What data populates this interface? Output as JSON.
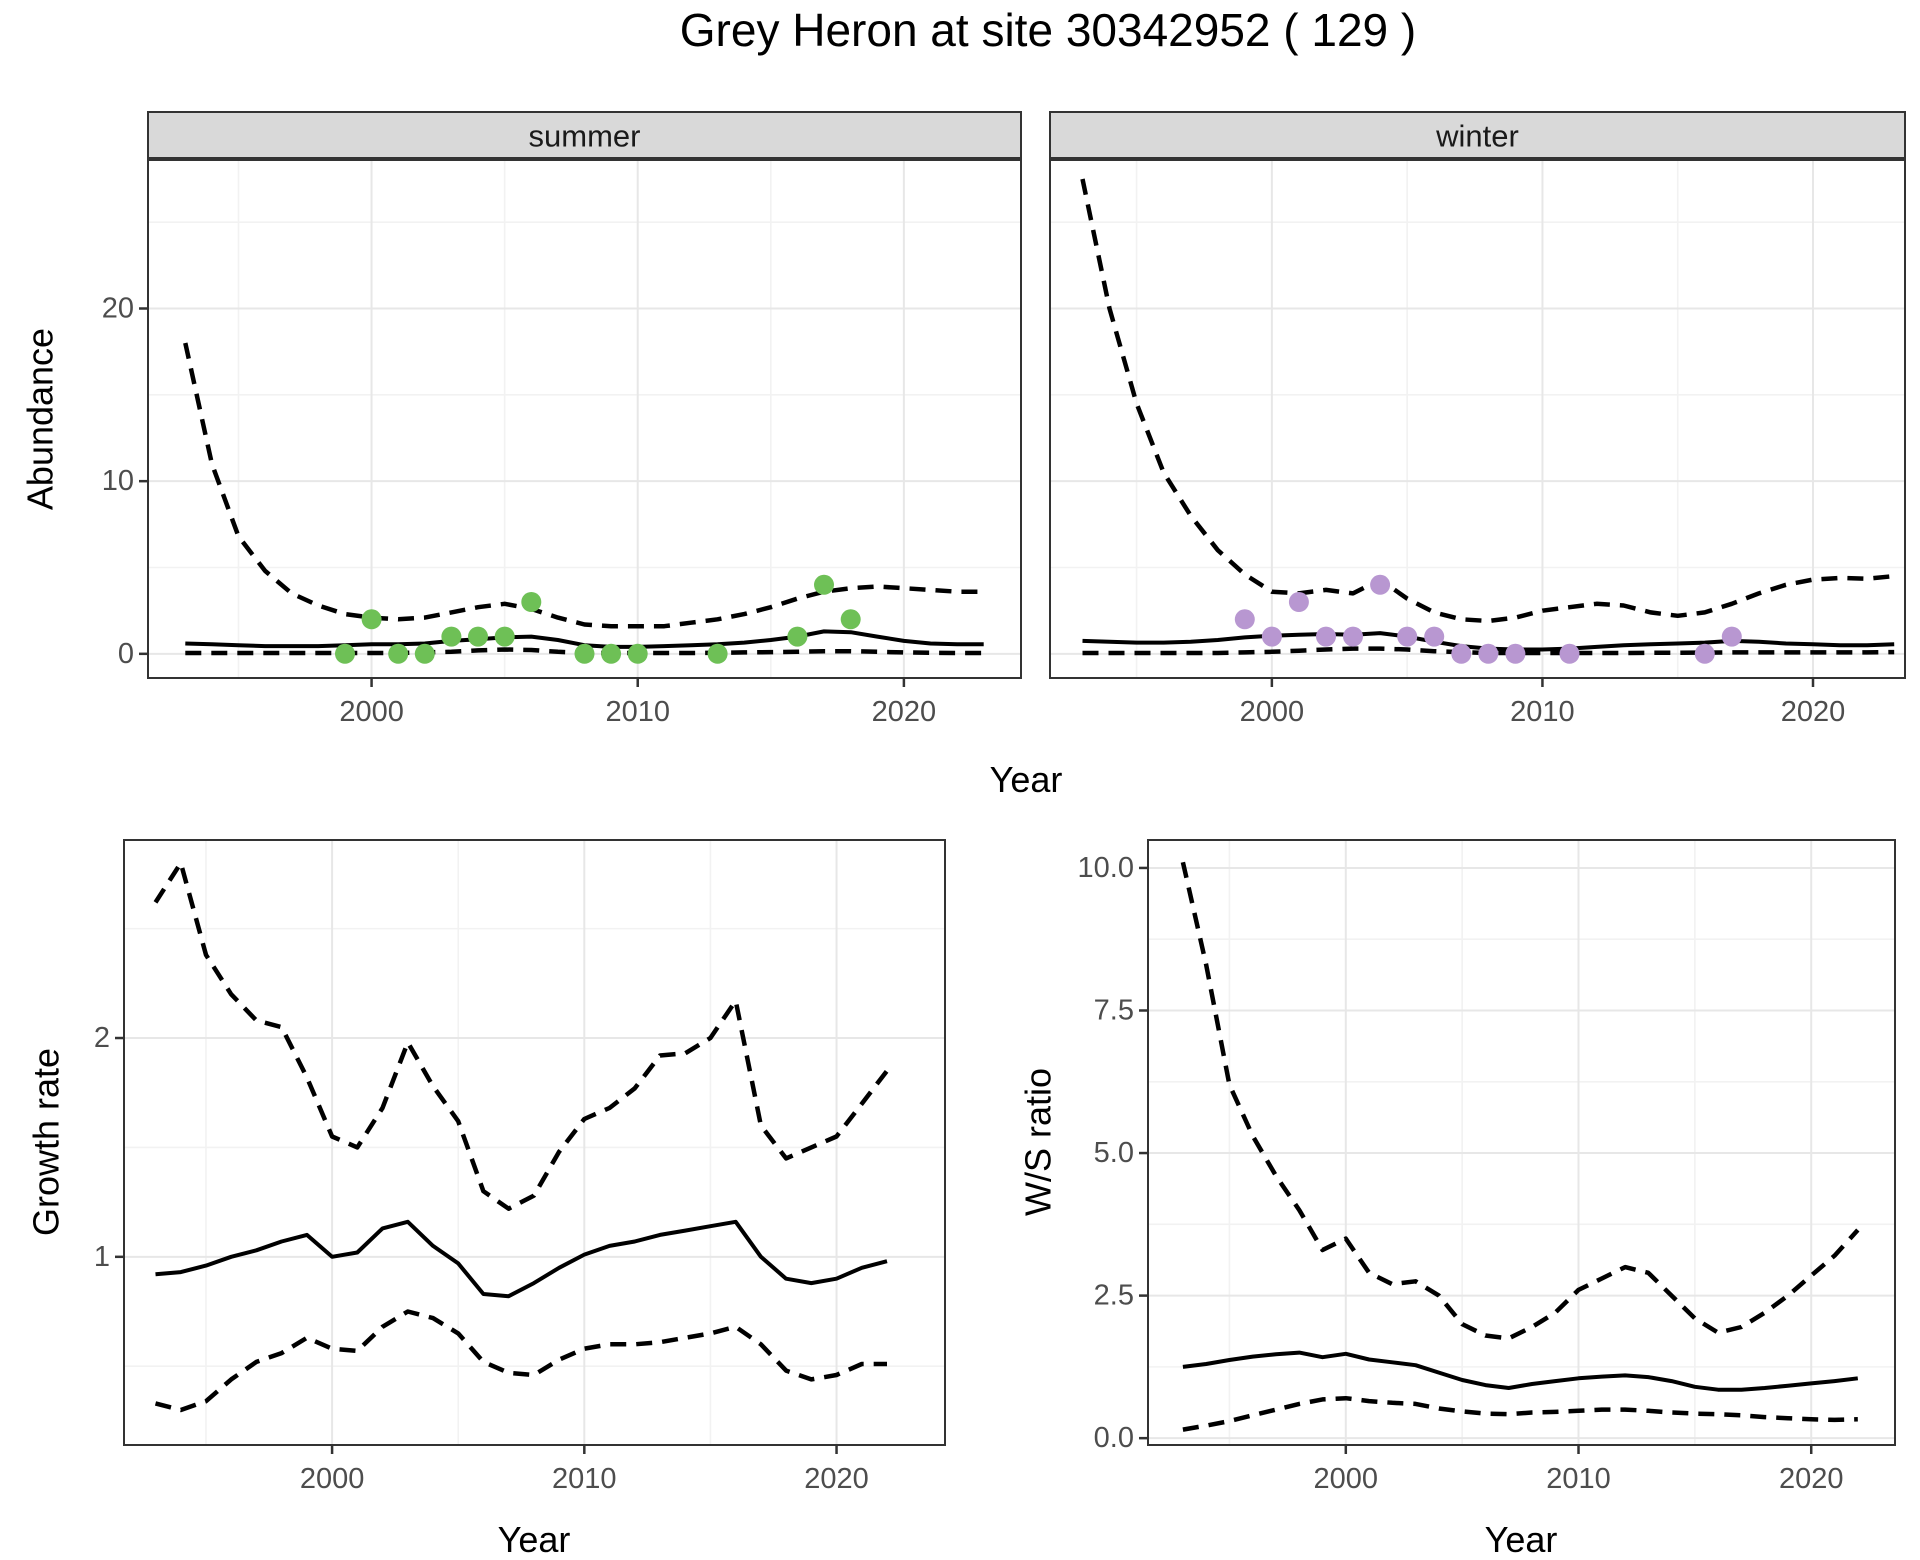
{
  "title": "Grey Heron at site 30342952 ( 129 )",
  "labels": {
    "abundance": "Abundance",
    "year_top": "Year",
    "growth_rate": "Growth rate",
    "year_bottom_left": "Year",
    "ws_ratio": "W/S ratio",
    "year_bottom_right": "Year"
  },
  "colors": {
    "summer_point": "#6ec056",
    "winter_point": "#b897d1",
    "line": "#000000",
    "grid_major": "#e7e7e7",
    "grid_minor": "#f2f2f2",
    "strip_bg": "#d9d9d9",
    "panel_border": "#333333",
    "tick_label": "#4d4d4d",
    "axis_title": "#000000",
    "strip_text": "#1a1a1a",
    "background": "#ffffff"
  },
  "chart_data": [
    {
      "id": "abundance-summer",
      "type": "line",
      "facet_label": "summer",
      "x_label": "Year",
      "y_label": "Abundance",
      "x": [
        1993,
        1994,
        1995,
        1996,
        1997,
        1998,
        1999,
        2000,
        2001,
        2002,
        2003,
        2004,
        2005,
        2006,
        2007,
        2008,
        2009,
        2010,
        2011,
        2012,
        2013,
        2014,
        2015,
        2016,
        2017,
        2018,
        2019,
        2020,
        2021,
        2022,
        2023
      ],
      "xlim": [
        1991.6,
        2024.4
      ],
      "ylim": [
        -1.4,
        28.6
      ],
      "x_ticks": [
        {
          "v": 2000,
          "label": "2000"
        },
        {
          "v": 2010,
          "label": "2010"
        },
        {
          "v": 2020,
          "label": "2020"
        }
      ],
      "x_minor": [
        1995,
        2005,
        2015
      ],
      "y_ticks": [
        {
          "v": 0,
          "label": "0"
        },
        {
          "v": 10,
          "label": "10"
        },
        {
          "v": 20,
          "label": "20"
        }
      ],
      "y_minor": [
        5,
        15,
        25
      ],
      "show_y_tick_labels": true,
      "series": [
        {
          "name": "upper-ci",
          "style": "dashed",
          "values": [
            18,
            11,
            6.8,
            4.8,
            3.5,
            2.8,
            2.3,
            2.1,
            2.0,
            2.1,
            2.4,
            2.7,
            2.9,
            2.6,
            2.1,
            1.7,
            1.6,
            1.6,
            1.6,
            1.8,
            2.0,
            2.3,
            2.7,
            3.2,
            3.6,
            3.8,
            3.9,
            3.8,
            3.7,
            3.6,
            3.6
          ]
        },
        {
          "name": "median",
          "style": "solid",
          "values": [
            0.6,
            0.55,
            0.5,
            0.45,
            0.45,
            0.45,
            0.5,
            0.55,
            0.55,
            0.6,
            0.75,
            0.85,
            0.95,
            1.0,
            0.8,
            0.5,
            0.4,
            0.4,
            0.45,
            0.5,
            0.55,
            0.65,
            0.8,
            1.0,
            1.3,
            1.25,
            1.0,
            0.75,
            0.6,
            0.55,
            0.55
          ]
        },
        {
          "name": "lower-ci",
          "style": "dashed",
          "values": [
            0.05,
            0.05,
            0.05,
            0.05,
            0.05,
            0.05,
            0.05,
            0.05,
            0.05,
            0.08,
            0.12,
            0.2,
            0.25,
            0.22,
            0.12,
            0.05,
            0.05,
            0.05,
            0.05,
            0.05,
            0.06,
            0.08,
            0.1,
            0.12,
            0.15,
            0.15,
            0.12,
            0.08,
            0.06,
            0.05,
            0.05
          ]
        }
      ],
      "points": {
        "color_key": "summer_point",
        "data": [
          [
            1999,
            0
          ],
          [
            2000,
            2
          ],
          [
            2001,
            0
          ],
          [
            2002,
            0
          ],
          [
            2003,
            1
          ],
          [
            2004,
            1
          ],
          [
            2005,
            1
          ],
          [
            2006,
            3
          ],
          [
            2008,
            0
          ],
          [
            2009,
            0
          ],
          [
            2010,
            0
          ],
          [
            2013,
            0
          ],
          [
            2016,
            1
          ],
          [
            2017,
            4
          ],
          [
            2018,
            2
          ]
        ]
      }
    },
    {
      "id": "abundance-winter",
      "type": "line",
      "facet_label": "winter",
      "x_label": "Year",
      "y_label": "Abundance",
      "x": [
        1993,
        1994,
        1995,
        1996,
        1997,
        1998,
        1999,
        2000,
        2001,
        2002,
        2003,
        2004,
        2005,
        2006,
        2007,
        2008,
        2009,
        2010,
        2011,
        2012,
        2013,
        2014,
        2015,
        2016,
        2017,
        2018,
        2019,
        2020,
        2021,
        2022,
        2023
      ],
      "xlim": [
        1991.8,
        2023.4
      ],
      "ylim": [
        -1.4,
        28.6
      ],
      "x_ticks": [
        {
          "v": 2000,
          "label": "2000"
        },
        {
          "v": 2010,
          "label": "2010"
        },
        {
          "v": 2020,
          "label": "2020"
        }
      ],
      "x_minor": [
        1995,
        2005,
        2015
      ],
      "y_ticks": [
        {
          "v": 0,
          "label": "0"
        },
        {
          "v": 10,
          "label": "10"
        },
        {
          "v": 20,
          "label": "20"
        }
      ],
      "y_minor": [
        5,
        15,
        25
      ],
      "show_y_tick_labels": false,
      "series": [
        {
          "name": "upper-ci",
          "style": "dashed",
          "values": [
            27.5,
            20,
            14.5,
            10.5,
            8,
            6,
            4.6,
            3.6,
            3.5,
            3.7,
            3.5,
            4.3,
            3.2,
            2.4,
            2.0,
            1.9,
            2.1,
            2.5,
            2.7,
            2.9,
            2.8,
            2.4,
            2.2,
            2.4,
            2.9,
            3.5,
            4.0,
            4.3,
            4.4,
            4.35,
            4.5
          ]
        },
        {
          "name": "median",
          "style": "solid",
          "values": [
            0.75,
            0.7,
            0.65,
            0.65,
            0.7,
            0.8,
            0.95,
            1.05,
            1.1,
            1.15,
            1.1,
            1.2,
            1.0,
            0.7,
            0.45,
            0.3,
            0.25,
            0.25,
            0.3,
            0.4,
            0.5,
            0.55,
            0.6,
            0.65,
            0.75,
            0.7,
            0.6,
            0.55,
            0.5,
            0.5,
            0.55
          ]
        },
        {
          "name": "lower-ci",
          "style": "dashed",
          "values": [
            0.05,
            0.05,
            0.05,
            0.05,
            0.05,
            0.05,
            0.08,
            0.12,
            0.18,
            0.25,
            0.3,
            0.3,
            0.25,
            0.15,
            0.1,
            0.05,
            0.05,
            0.05,
            0.05,
            0.05,
            0.05,
            0.06,
            0.06,
            0.07,
            0.08,
            0.08,
            0.08,
            0.08,
            0.08,
            0.08,
            0.1
          ]
        }
      ],
      "points": {
        "color_key": "winter_point",
        "data": [
          [
            1999,
            2
          ],
          [
            2000,
            1
          ],
          [
            2001,
            3
          ],
          [
            2002,
            1
          ],
          [
            2003,
            1
          ],
          [
            2004,
            4
          ],
          [
            2005,
            1
          ],
          [
            2006,
            1
          ],
          [
            2007,
            0
          ],
          [
            2008,
            0
          ],
          [
            2009,
            0
          ],
          [
            2011,
            0
          ],
          [
            2016,
            0
          ],
          [
            2017,
            1
          ]
        ]
      }
    },
    {
      "id": "growth-rate",
      "type": "line",
      "facet_label": null,
      "x_label": "Year",
      "y_label": "Growth rate",
      "x": [
        1993,
        1994,
        1995,
        1996,
        1997,
        1998,
        1999,
        2000,
        2001,
        2002,
        2003,
        2004,
        2005,
        2006,
        2007,
        2008,
        2009,
        2010,
        2011,
        2012,
        2013,
        2014,
        2015,
        2016,
        2017,
        2018,
        2019,
        2020,
        2021,
        2022
      ],
      "xlim": [
        1991.75,
        2024.3
      ],
      "ylim": [
        0.14,
        2.905
      ],
      "x_ticks": [
        {
          "v": 2000,
          "label": "2000"
        },
        {
          "v": 2010,
          "label": "2010"
        },
        {
          "v": 2020,
          "label": "2020"
        }
      ],
      "x_minor": [
        1995,
        2005,
        2015
      ],
      "y_ticks": [
        {
          "v": 1,
          "label": "1"
        },
        {
          "v": 2,
          "label": "2"
        }
      ],
      "y_minor": [
        0.5,
        1.5,
        2.5
      ],
      "show_y_tick_labels": true,
      "series": [
        {
          "name": "upper-ci",
          "style": "dashed",
          "values": [
            2.62,
            2.8,
            2.38,
            2.2,
            2.08,
            2.05,
            1.82,
            1.55,
            1.5,
            1.68,
            1.98,
            1.78,
            1.62,
            1.3,
            1.22,
            1.28,
            1.48,
            1.63,
            1.68,
            1.77,
            1.92,
            1.93,
            2.0,
            2.17,
            1.6,
            1.45,
            1.5,
            1.55,
            1.7,
            1.85
          ]
        },
        {
          "name": "median",
          "style": "solid",
          "values": [
            0.92,
            0.93,
            0.96,
            1.0,
            1.03,
            1.07,
            1.1,
            1.0,
            1.02,
            1.13,
            1.16,
            1.05,
            0.97,
            0.83,
            0.82,
            0.88,
            0.95,
            1.01,
            1.05,
            1.07,
            1.1,
            1.12,
            1.14,
            1.16,
            1.0,
            0.9,
            0.88,
            0.9,
            0.95,
            0.98
          ]
        },
        {
          "name": "lower-ci",
          "style": "dashed",
          "values": [
            0.33,
            0.3,
            0.34,
            0.44,
            0.52,
            0.56,
            0.63,
            0.58,
            0.57,
            0.68,
            0.75,
            0.72,
            0.65,
            0.52,
            0.47,
            0.46,
            0.53,
            0.58,
            0.6,
            0.6,
            0.61,
            0.63,
            0.65,
            0.68,
            0.6,
            0.48,
            0.44,
            0.46,
            0.51,
            0.51
          ]
        }
      ],
      "points": null
    },
    {
      "id": "ws-ratio",
      "type": "line",
      "facet_label": null,
      "x_label": "Year",
      "y_label": "W/S ratio",
      "x": [
        1993,
        1994,
        1995,
        1996,
        1997,
        1998,
        1999,
        2000,
        2001,
        2002,
        2003,
        2004,
        2005,
        2006,
        2007,
        2008,
        2009,
        2010,
        2011,
        2012,
        2013,
        2014,
        2015,
        2016,
        2017,
        2018,
        2019,
        2020,
        2021,
        2022
      ],
      "xlim": [
        1991.5,
        2023.6
      ],
      "ylim": [
        -0.12,
        10.49
      ],
      "x_ticks": [
        {
          "v": 2000,
          "label": "2000"
        },
        {
          "v": 2010,
          "label": "2010"
        },
        {
          "v": 2020,
          "label": "2020"
        }
      ],
      "x_minor": [
        1995,
        2005,
        2015
      ],
      "y_ticks": [
        {
          "v": 0,
          "label": "0.0"
        },
        {
          "v": 2.5,
          "label": "2.5"
        },
        {
          "v": 5,
          "label": "5.0"
        },
        {
          "v": 7.5,
          "label": "7.5"
        },
        {
          "v": 10,
          "label": "10.0"
        }
      ],
      "y_minor": [
        1.25,
        3.75,
        6.25,
        8.75
      ],
      "show_y_tick_labels": true,
      "series": [
        {
          "name": "upper-ci",
          "style": "dashed",
          "values": [
            10.1,
            8.3,
            6.2,
            5.3,
            4.6,
            4.0,
            3.3,
            3.5,
            2.9,
            2.7,
            2.75,
            2.5,
            2.0,
            1.8,
            1.75,
            1.95,
            2.2,
            2.6,
            2.8,
            3.0,
            2.9,
            2.5,
            2.1,
            1.85,
            1.95,
            2.2,
            2.5,
            2.85,
            3.2,
            3.65
          ]
        },
        {
          "name": "median",
          "style": "solid",
          "values": [
            1.25,
            1.3,
            1.37,
            1.43,
            1.47,
            1.5,
            1.42,
            1.48,
            1.38,
            1.33,
            1.28,
            1.15,
            1.02,
            0.93,
            0.88,
            0.95,
            1.0,
            1.05,
            1.08,
            1.1,
            1.07,
            1.0,
            0.9,
            0.85,
            0.85,
            0.88,
            0.92,
            0.96,
            1.0,
            1.05
          ]
        },
        {
          "name": "lower-ci",
          "style": "dashed",
          "values": [
            0.15,
            0.22,
            0.3,
            0.4,
            0.5,
            0.6,
            0.68,
            0.7,
            0.65,
            0.62,
            0.6,
            0.52,
            0.47,
            0.43,
            0.42,
            0.45,
            0.46,
            0.48,
            0.5,
            0.5,
            0.48,
            0.45,
            0.43,
            0.42,
            0.4,
            0.37,
            0.35,
            0.33,
            0.32,
            0.33
          ]
        }
      ],
      "points": null
    }
  ]
}
